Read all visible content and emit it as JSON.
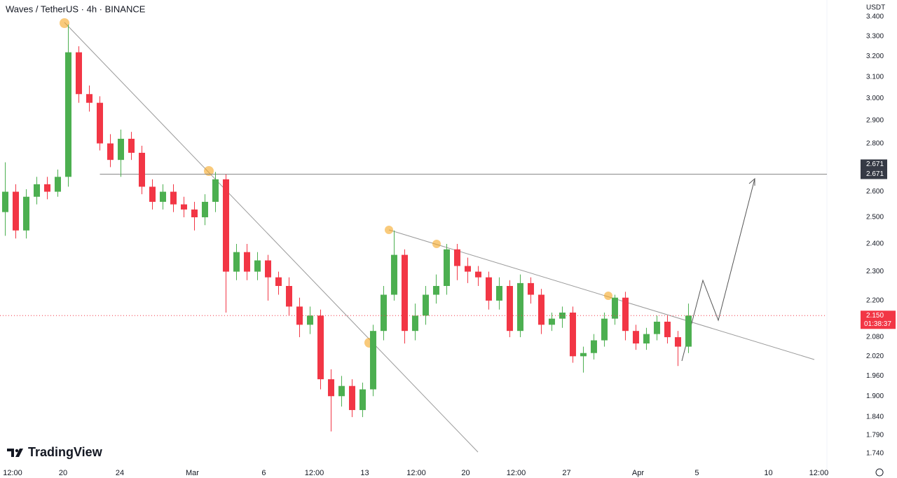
{
  "chart_data": {
    "type": "candlestick",
    "title": "Waves / TetherUS · 4h · BINANCE",
    "currency": "USDT",
    "brand": "TradingView",
    "log_scale": true,
    "grid": false,
    "up_color": "#4caf50",
    "down_color": "#f23645",
    "open": [
      2.52,
      2.6,
      2.45,
      2.58,
      2.63,
      2.6,
      2.66,
      3.22,
      3.02,
      2.98,
      2.8,
      2.73,
      2.82,
      2.76,
      2.62,
      2.56,
      2.6,
      2.55,
      2.53,
      2.5,
      2.56,
      2.65,
      2.3,
      2.37,
      2.3,
      2.34,
      2.28,
      2.25,
      2.18,
      2.12,
      2.15,
      1.95,
      1.9,
      1.93,
      1.86,
      1.92,
      2.1,
      2.22,
      2.36,
      2.1,
      2.15,
      2.22,
      2.25,
      2.38,
      2.32,
      2.3,
      2.28,
      2.2,
      2.25,
      2.1,
      2.26,
      2.22,
      2.12,
      2.14,
      2.16,
      2.02,
      2.03,
      2.07,
      2.14,
      2.21,
      2.1,
      2.06,
      2.09,
      2.13,
      2.08,
      2.05
    ],
    "high": [
      2.72,
      2.63,
      2.61,
      2.66,
      2.66,
      2.69,
      3.36,
      3.25,
      3.06,
      3.01,
      2.84,
      2.86,
      2.85,
      2.79,
      2.65,
      2.63,
      2.63,
      2.58,
      2.56,
      2.59,
      2.68,
      2.67,
      2.4,
      2.4,
      2.37,
      2.36,
      2.3,
      2.28,
      2.21,
      2.18,
      2.17,
      1.98,
      1.96,
      1.95,
      1.94,
      2.12,
      2.25,
      2.45,
      2.38,
      2.19,
      2.25,
      2.29,
      2.4,
      2.4,
      2.35,
      2.32,
      2.3,
      2.28,
      2.27,
      2.29,
      2.28,
      2.24,
      2.16,
      2.18,
      2.18,
      2.05,
      2.09,
      2.16,
      2.22,
      2.23,
      2.12,
      2.11,
      2.15,
      2.15,
      2.1,
      2.19
    ],
    "low": [
      2.43,
      2.42,
      2.42,
      2.55,
      2.57,
      2.58,
      2.62,
      2.98,
      2.94,
      2.77,
      2.7,
      2.66,
      2.73,
      2.59,
      2.53,
      2.53,
      2.52,
      2.5,
      2.45,
      2.47,
      2.52,
      2.16,
      2.27,
      2.27,
      2.27,
      2.2,
      2.22,
      2.15,
      2.08,
      2.09,
      1.92,
      1.8,
      1.87,
      1.84,
      1.84,
      1.9,
      2.07,
      2.2,
      2.06,
      2.07,
      2.12,
      2.19,
      2.22,
      2.27,
      2.26,
      2.25,
      2.17,
      2.17,
      2.08,
      2.08,
      2.19,
      2.09,
      2.1,
      2.11,
      2.0,
      1.97,
      2.01,
      2.05,
      2.12,
      2.07,
      2.04,
      2.04,
      2.07,
      2.06,
      1.99,
      2.03
    ],
    "close": [
      2.6,
      2.45,
      2.58,
      2.63,
      2.6,
      2.66,
      3.22,
      3.02,
      2.98,
      2.8,
      2.73,
      2.82,
      2.76,
      2.62,
      2.56,
      2.6,
      2.55,
      2.53,
      2.5,
      2.56,
      2.65,
      2.3,
      2.37,
      2.3,
      2.34,
      2.28,
      2.25,
      2.18,
      2.12,
      2.15,
      1.95,
      1.9,
      1.93,
      1.86,
      1.92,
      2.1,
      2.22,
      2.36,
      2.1,
      2.15,
      2.22,
      2.25,
      2.38,
      2.32,
      2.3,
      2.28,
      2.2,
      2.25,
      2.1,
      2.26,
      2.22,
      2.12,
      2.14,
      2.16,
      2.02,
      2.03,
      2.07,
      2.14,
      2.21,
      2.1,
      2.06,
      2.09,
      2.13,
      2.08,
      2.05,
      2.15
    ],
    "xlim": [
      -0.5,
      78.17
    ],
    "xticks": [
      {
        "value": 0.7,
        "label": "12:00"
      },
      {
        "value": 5.5,
        "label": "20"
      },
      {
        "value": 10.9,
        "label": "24"
      },
      {
        "value": 17.8,
        "label": "Mar"
      },
      {
        "value": 24.6,
        "label": "6"
      },
      {
        "value": 29.4,
        "label": "12:00"
      },
      {
        "value": 34.2,
        "label": "13"
      },
      {
        "value": 39.1,
        "label": "12:00"
      },
      {
        "value": 43.8,
        "label": "20"
      },
      {
        "value": 48.6,
        "label": "12:00"
      },
      {
        "value": 53.4,
        "label": "27"
      },
      {
        "value": 60.2,
        "label": "Apr"
      },
      {
        "value": 65.8,
        "label": "5"
      },
      {
        "value": 72.6,
        "label": "10"
      },
      {
        "value": 77.4,
        "label": "12:00"
      }
    ],
    "ylim": [
      1.716,
      3.489
    ],
    "yticks": [
      {
        "value": 3.4,
        "label": "3.400"
      },
      {
        "value": 3.3,
        "label": "3.300"
      },
      {
        "value": 3.2,
        "label": "3.200"
      },
      {
        "value": 3.1,
        "label": "3.100"
      },
      {
        "value": 3.0,
        "label": "3.000"
      },
      {
        "value": 2.9,
        "label": "2.900"
      },
      {
        "value": 2.8,
        "label": "2.800"
      },
      {
        "value": 2.6,
        "label": "2.600"
      },
      {
        "value": 2.5,
        "label": "2.500"
      },
      {
        "value": 2.4,
        "label": "2.400"
      },
      {
        "value": 2.3,
        "label": "2.300"
      },
      {
        "value": 2.2,
        "label": "2.200"
      },
      {
        "value": 2.08,
        "label": "2.080"
      },
      {
        "value": 2.02,
        "label": "2.020"
      },
      {
        "value": 1.96,
        "label": "1.960"
      },
      {
        "value": 1.9,
        "label": "1.900"
      },
      {
        "value": 1.84,
        "label": "1.840"
      },
      {
        "value": 1.79,
        "label": "1.790"
      },
      {
        "value": 1.74,
        "label": "1.740"
      }
    ],
    "price_line": {
      "value": 2.671,
      "label": "2.671"
    },
    "last_price": {
      "value": 2.15,
      "label": "2.150"
    },
    "countdown": "01:38:37"
  }
}
